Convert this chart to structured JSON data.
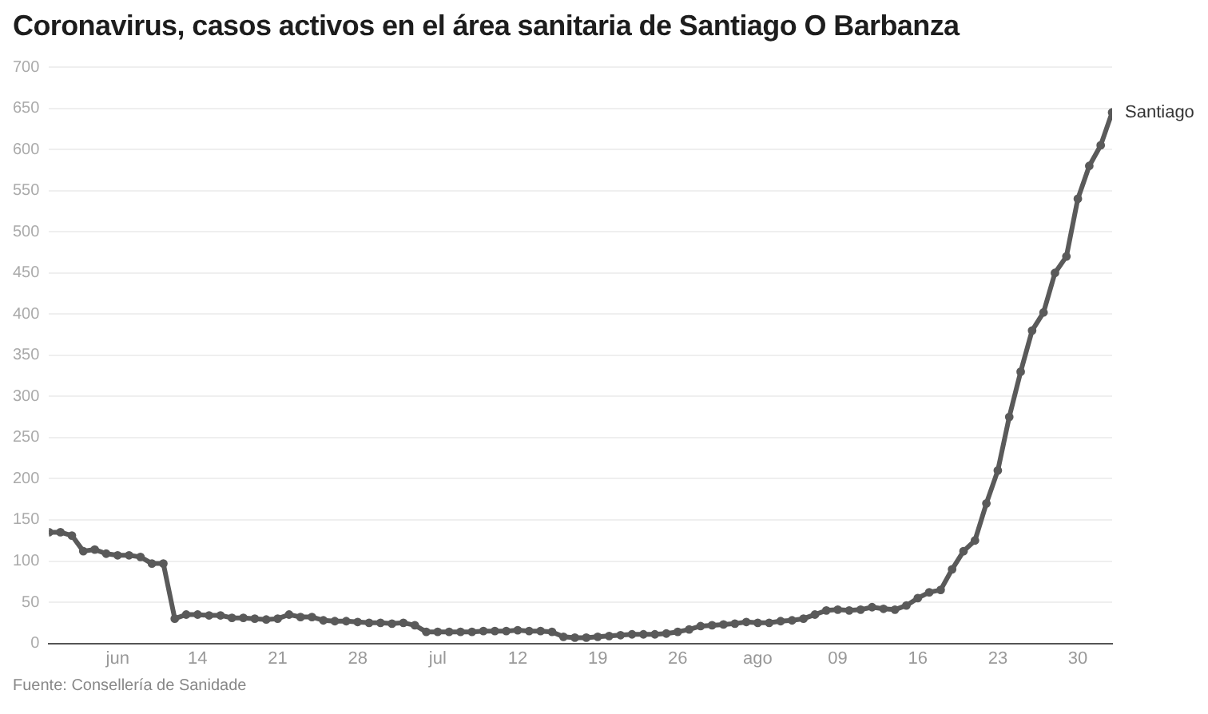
{
  "chart_data": {
    "type": "line",
    "title": "Coronavirus, casos activos en el área sanitaria de Santiago O Barbanza",
    "annotations": [
      "Fuente: Consellería de Sanidade"
    ],
    "x": [
      "--06-01",
      "--06-02",
      "--06-03",
      "--06-04",
      "--06-05",
      "--06-06",
      "--06-07",
      "--06-08",
      "--06-09",
      "--06-10",
      "--06-11",
      "--06-12",
      "--06-13",
      "--06-14",
      "--06-15",
      "--06-16",
      "--06-17",
      "--06-18",
      "--06-19",
      "--06-20",
      "--06-21",
      "--06-22",
      "--06-23",
      "--06-24",
      "--06-25",
      "--06-26",
      "--06-27",
      "--06-28",
      "--06-29",
      "--06-30",
      "--07-01",
      "--07-02",
      "--07-03",
      "--07-04",
      "--07-05",
      "--07-06",
      "--07-07",
      "--07-08",
      "--07-09",
      "--07-10",
      "--07-11",
      "--07-12",
      "--07-13",
      "--07-14",
      "--07-15",
      "--07-16",
      "--07-17",
      "--07-18",
      "--07-19",
      "--07-20",
      "--07-21",
      "--07-22",
      "--07-23",
      "--07-24",
      "--07-25",
      "--07-26",
      "--07-27",
      "--07-28",
      "--07-29",
      "--07-30",
      "--07-31",
      "--08-01",
      "--08-02",
      "--08-03",
      "--08-04",
      "--08-05",
      "--08-06",
      "--08-07",
      "--08-08",
      "--08-09",
      "--08-10",
      "--08-11",
      "--08-12",
      "--08-13",
      "--08-14",
      "--08-15",
      "--08-16",
      "--08-17",
      "--08-18",
      "--08-19",
      "--08-20",
      "--08-21",
      "--08-22",
      "--08-23",
      "--08-24",
      "--08-25",
      "--08-26",
      "--08-27",
      "--08-28",
      "--08-29",
      "--08-30",
      "--08-31",
      "--09-01",
      "--09-02"
    ],
    "series": [
      {
        "name": "Santiago",
        "color": "#5a5a5a",
        "values": [
          135,
          135,
          131,
          112,
          114,
          109,
          107,
          107,
          105,
          97,
          97,
          30,
          35,
          35,
          34,
          34,
          31,
          31,
          30,
          29,
          30,
          35,
          32,
          32,
          28,
          27,
          27,
          26,
          25,
          25,
          24,
          25,
          22,
          14,
          14,
          14,
          14,
          14,
          15,
          15,
          15,
          16,
          15,
          15,
          14,
          8,
          7,
          7,
          8,
          9,
          10,
          11,
          11,
          11,
          12,
          14,
          17,
          21,
          22,
          23,
          24,
          26,
          25,
          25,
          27,
          28,
          30,
          35,
          40,
          41,
          40,
          41,
          44,
          42,
          41,
          46,
          55,
          62,
          65,
          90,
          112,
          125,
          170,
          210,
          275,
          330,
          380,
          402,
          450,
          470,
          540,
          580,
          605,
          645
        ]
      }
    ],
    "xlim": [
      "--06-01",
      "--09-02"
    ],
    "xticks": [
      {
        "value": "--06-07",
        "label": "jun"
      },
      {
        "value": "--06-14",
        "label": "14"
      },
      {
        "value": "--06-21",
        "label": "21"
      },
      {
        "value": "--06-28",
        "label": "28"
      },
      {
        "value": "--07-05",
        "label": "jul"
      },
      {
        "value": "--07-12",
        "label": "12"
      },
      {
        "value": "--07-19",
        "label": "19"
      },
      {
        "value": "--07-26",
        "label": "26"
      },
      {
        "value": "--08-02",
        "label": "ago"
      },
      {
        "value": "--08-09",
        "label": "09"
      },
      {
        "value": "--08-16",
        "label": "16"
      },
      {
        "value": "--08-23",
        "label": "23"
      },
      {
        "value": "--08-30",
        "label": "30"
      }
    ],
    "ylim": [
      0,
      700
    ],
    "yticks": [
      0,
      50,
      100,
      150,
      200,
      250,
      300,
      350,
      400,
      450,
      500,
      550,
      600,
      650,
      700
    ],
    "grid": "y",
    "legend": false,
    "marker": "circle",
    "line_style": "solid"
  }
}
